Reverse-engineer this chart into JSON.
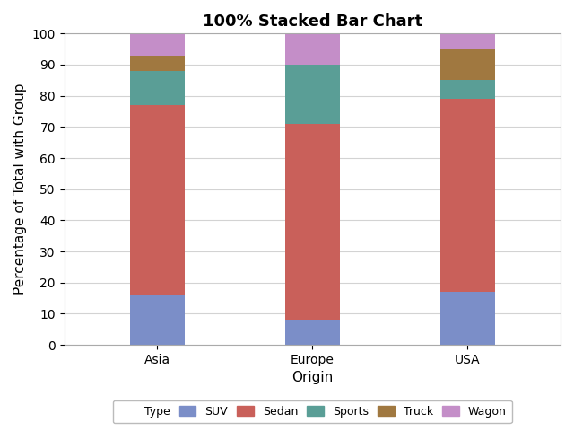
{
  "title": "100% Stacked Bar Chart",
  "xlabel": "Origin",
  "ylabel": "Percentage of Total with Group",
  "categories": [
    "Asia",
    "Europe",
    "USA"
  ],
  "types": [
    "SUV",
    "Sedan",
    "Sports",
    "Truck",
    "Wagon"
  ],
  "colors": {
    "SUV": "#7b8ec8",
    "Sedan": "#c9605a",
    "Sports": "#5a9e96",
    "Truck": "#a07840",
    "Wagon": "#c48ec8"
  },
  "percentages": {
    "Asia": [
      16.0,
      61.0,
      11.0,
      5.0,
      7.0
    ],
    "Europe": [
      8.0,
      63.0,
      19.0,
      0.0,
      10.0
    ],
    "USA": [
      17.0,
      62.0,
      6.0,
      10.0,
      5.0
    ]
  },
  "ylim": [
    0,
    100
  ],
  "yticks": [
    0,
    10,
    20,
    30,
    40,
    50,
    60,
    70,
    80,
    90,
    100
  ],
  "background_color": "#ffffff",
  "grid_color": "#d3d3d3",
  "legend_label": "Type",
  "bar_width": 0.35,
  "figsize": [
    6.4,
    4.8
  ],
  "dpi": 100,
  "title_fontsize": 13,
  "axis_fontsize": 11,
  "tick_fontsize": 10,
  "legend_fontsize": 9
}
